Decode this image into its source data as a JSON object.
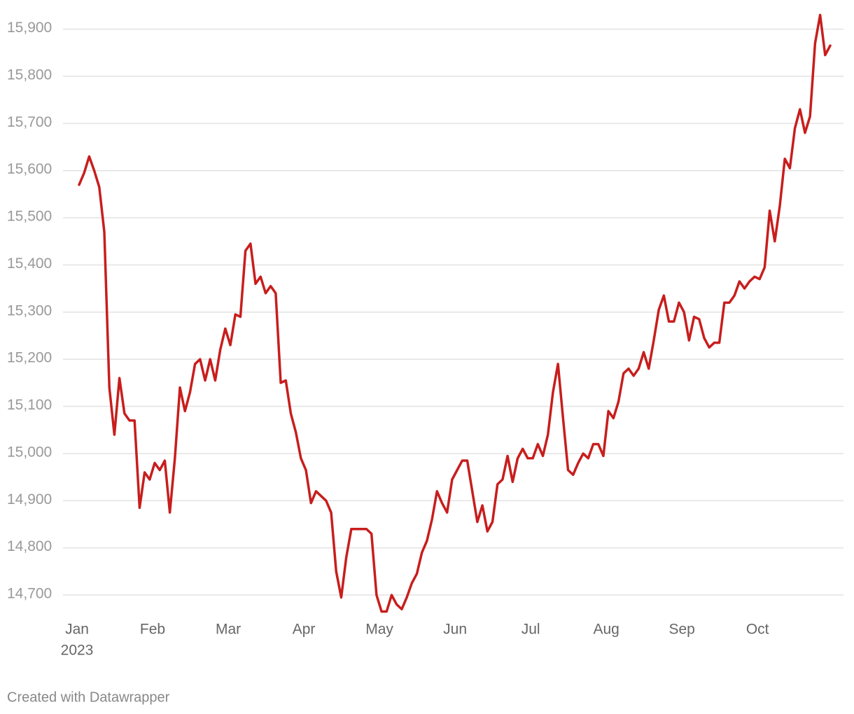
{
  "chart_data": {
    "type": "line",
    "categories": [
      "Jan",
      null,
      null,
      null,
      null,
      null,
      null,
      null,
      null,
      null,
      null,
      null,
      null,
      null,
      null,
      "Feb",
      null,
      null,
      null,
      null,
      null,
      null,
      null,
      null,
      null,
      null,
      null,
      null,
      null,
      null,
      "Mar",
      null,
      null,
      null,
      null,
      null,
      null,
      null,
      null,
      null,
      null,
      null,
      null,
      null,
      null,
      "Apr",
      null,
      null,
      null,
      null,
      null,
      null,
      null,
      null,
      null,
      null,
      null,
      null,
      null,
      null,
      "May",
      null,
      null,
      null,
      null,
      null,
      null,
      null,
      null,
      null,
      null,
      null,
      null,
      null,
      null,
      "Jun",
      null,
      null,
      null,
      null,
      null,
      null,
      null,
      null,
      null,
      null,
      null,
      null,
      null,
      null,
      "Jul",
      null,
      null,
      null,
      null,
      null,
      null,
      null,
      null,
      null,
      null,
      null,
      null,
      null,
      null,
      "Aug",
      null,
      null,
      null,
      null,
      null,
      null,
      null,
      null,
      null,
      null,
      null,
      null,
      null,
      null,
      "Sep",
      null,
      null,
      null,
      null,
      null,
      null,
      null,
      null,
      null,
      null,
      null,
      null,
      null,
      null,
      "Oct",
      null,
      null,
      null,
      null,
      null,
      null,
      null,
      null,
      null,
      null,
      null,
      null,
      null,
      null
    ],
    "x_sublabel": "2023",
    "series": [
      {
        "color": "#c71e1d",
        "values": [
          15570,
          15595,
          15630,
          15600,
          15565,
          15470,
          15140,
          15040,
          15160,
          15085,
          15070,
          15070,
          14885,
          14960,
          14945,
          14980,
          14965,
          14985,
          14875,
          14990,
          15140,
          15090,
          15130,
          15190,
          15200,
          15155,
          15200,
          15155,
          15220,
          15265,
          15230,
          15295,
          15290,
          15430,
          15445,
          15360,
          15375,
          15340,
          15355,
          15340,
          15150,
          15155,
          15085,
          15045,
          14990,
          14965,
          14895,
          14920,
          14910,
          14900,
          14875,
          14750,
          14695,
          14780,
          14840,
          14840,
          14840,
          14840,
          14830,
          14700,
          14665,
          14665,
          14700,
          14680,
          14670,
          14695,
          14725,
          14745,
          14790,
          14815,
          14860,
          14920,
          14895,
          14875,
          14945,
          14965,
          14985,
          14985,
          14920,
          14855,
          14890,
          14835,
          14855,
          14935,
          14945,
          14995,
          14940,
          14990,
          15010,
          14990,
          14990,
          15020,
          14995,
          15040,
          15130,
          15190,
          15075,
          14965,
          14955,
          14980,
          15000,
          14990,
          15020,
          15020,
          14995,
          15090,
          15075,
          15110,
          15170,
          15180,
          15165,
          15180,
          15215,
          15180,
          15240,
          15305,
          15335,
          15280,
          15280,
          15320,
          15300,
          15240,
          15290,
          15285,
          15245,
          15225,
          15235,
          15235,
          15320,
          15320,
          15335,
          15365,
          15350,
          15365,
          15375,
          15370,
          15395,
          15515,
          15450,
          15525,
          15625,
          15605,
          15690,
          15730,
          15680,
          15715,
          15870,
          15930,
          15845,
          15865
        ]
      }
    ],
    "ylim": [
      14660,
      15935
    ],
    "yticks": [
      {
        "value": 14700,
        "label": "14,700"
      },
      {
        "value": 14800,
        "label": "14,800"
      },
      {
        "value": 14900,
        "label": "14,900"
      },
      {
        "value": 15000,
        "label": "15,000"
      },
      {
        "value": 15100,
        "label": "15,100"
      },
      {
        "value": 15200,
        "label": "15,200"
      },
      {
        "value": 15300,
        "label": "15,300"
      },
      {
        "value": 15400,
        "label": "15,400"
      },
      {
        "value": 15500,
        "label": "15,500"
      },
      {
        "value": 15600,
        "label": "15,600"
      },
      {
        "value": 15700,
        "label": "15,700"
      },
      {
        "value": 15800,
        "label": "15,800"
      },
      {
        "value": 15900,
        "label": "15,900"
      }
    ],
    "grid": true,
    "footer": "Created with Datawrapper"
  }
}
